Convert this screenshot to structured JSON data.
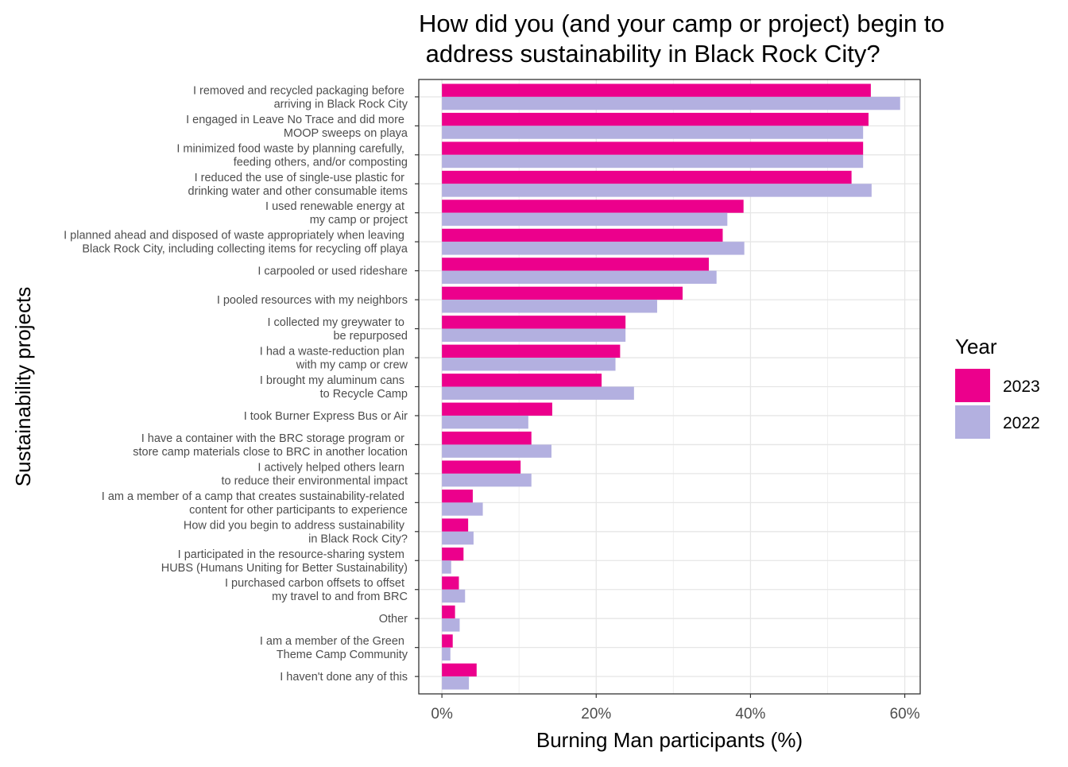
{
  "chart_data": {
    "type": "bar",
    "orientation": "horizontal",
    "title": "How did you (and your camp or project) begin to\n address sustainability in Black Rock City?",
    "xlabel": "Burning Man participants (%)",
    "ylabel": "Sustainability projects",
    "xlim": [
      -3,
      62
    ],
    "xticks": [
      0,
      20,
      40,
      60
    ],
    "xtick_labels": [
      "0%",
      "20%",
      "40%",
      "60%"
    ],
    "grid": true,
    "legend_title": "Year",
    "legend_position": "right",
    "categories": [
      "I removed and recycled packaging before \narriving in Black Rock City",
      "I engaged in Leave No Trace and did more \nMOOP sweeps on playa",
      "I minimized food waste by planning carefully, \nfeeding others, and/or composting",
      "I reduced the use of single-use plastic for \ndrinking water and other consumable items",
      "I used renewable energy at \nmy camp or project",
      "I planned ahead and disposed of waste appropriately when leaving \nBlack Rock City, including collecting items for recycling off playa",
      "I carpooled or used rideshare",
      "I pooled resources with my neighbors",
      "I collected my greywater to \nbe repurposed",
      "I had a waste-reduction plan \nwith my camp or crew",
      "I brought my aluminum cans \nto Recycle Camp",
      "I took Burner Express Bus or Air",
      "I have a container with the BRC storage program or \nstore camp materials close to BRC in another location",
      "I actively helped others learn \nto reduce their environmental impact",
      "I am a member of a camp that creates sustainability-related \ncontent for other participants to experience",
      "How did you begin to address sustainability \nin Black Rock City?",
      "I participated in the resource-sharing system \nHUBS (Humans Uniting for Better Sustainability)",
      "I purchased carbon offsets to offset \nmy travel to and from BRC",
      "Other",
      "I am a member of the Green \nTheme Camp Community",
      "I haven't done any of this"
    ],
    "series": [
      {
        "name": "2023",
        "color": "#EC008C",
        "values": [
          55.6,
          55.3,
          54.6,
          53.1,
          39.1,
          36.4,
          34.6,
          31.2,
          23.8,
          23.1,
          20.7,
          14.3,
          11.6,
          10.2,
          4.0,
          3.4,
          2.8,
          2.2,
          1.7,
          1.4,
          4.5
        ]
      },
      {
        "name": "2022",
        "color": "#B3B0E0",
        "values": [
          59.4,
          54.6,
          54.6,
          55.7,
          37.0,
          39.2,
          35.6,
          27.9,
          23.8,
          22.5,
          24.9,
          11.2,
          14.2,
          11.6,
          5.3,
          4.1,
          1.2,
          3.0,
          2.3,
          1.1,
          3.5
        ]
      }
    ]
  }
}
